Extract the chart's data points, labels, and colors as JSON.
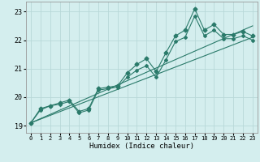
{
  "title": "",
  "xlabel": "Humidex (Indice chaleur)",
  "ylabel": "",
  "bg_color": "#d4eeee",
  "grid_color": "#b8d8d8",
  "line_color": "#2a7a6a",
  "xlim": [
    -0.5,
    23.5
  ],
  "ylim": [
    18.75,
    23.35
  ],
  "x_ticks": [
    0,
    1,
    2,
    3,
    4,
    5,
    6,
    7,
    8,
    9,
    10,
    11,
    12,
    13,
    14,
    15,
    16,
    17,
    18,
    19,
    20,
    21,
    22,
    23
  ],
  "y_ticks": [
    19,
    20,
    21,
    22,
    23
  ],
  "series1_x": [
    0,
    1,
    2,
    3,
    4,
    5,
    6,
    7,
    8,
    9,
    10,
    11,
    12,
    13,
    14,
    15,
    16,
    17,
    18,
    19,
    20,
    21,
    22,
    23
  ],
  "series1_y": [
    19.1,
    19.6,
    19.7,
    19.8,
    19.9,
    19.5,
    19.6,
    20.3,
    20.35,
    20.4,
    20.85,
    21.15,
    21.35,
    20.9,
    21.55,
    22.15,
    22.35,
    23.1,
    22.35,
    22.55,
    22.2,
    22.2,
    22.3,
    22.15
  ],
  "series2_x": [
    0,
    1,
    2,
    3,
    4,
    5,
    6,
    7,
    8,
    9,
    10,
    11,
    12,
    13,
    14,
    15,
    16,
    17,
    18,
    19,
    20,
    21,
    22,
    23
  ],
  "series2_y": [
    19.1,
    19.55,
    19.7,
    19.75,
    19.85,
    19.45,
    19.55,
    20.25,
    20.3,
    20.35,
    20.7,
    20.95,
    21.1,
    20.7,
    21.3,
    21.95,
    22.1,
    22.85,
    22.15,
    22.35,
    22.05,
    22.05,
    22.15,
    22.0
  ],
  "series3_x": [
    0,
    23
  ],
  "series3_y": [
    19.1,
    22.1
  ],
  "series4_x": [
    0,
    23
  ],
  "series4_y": [
    19.1,
    22.5
  ]
}
